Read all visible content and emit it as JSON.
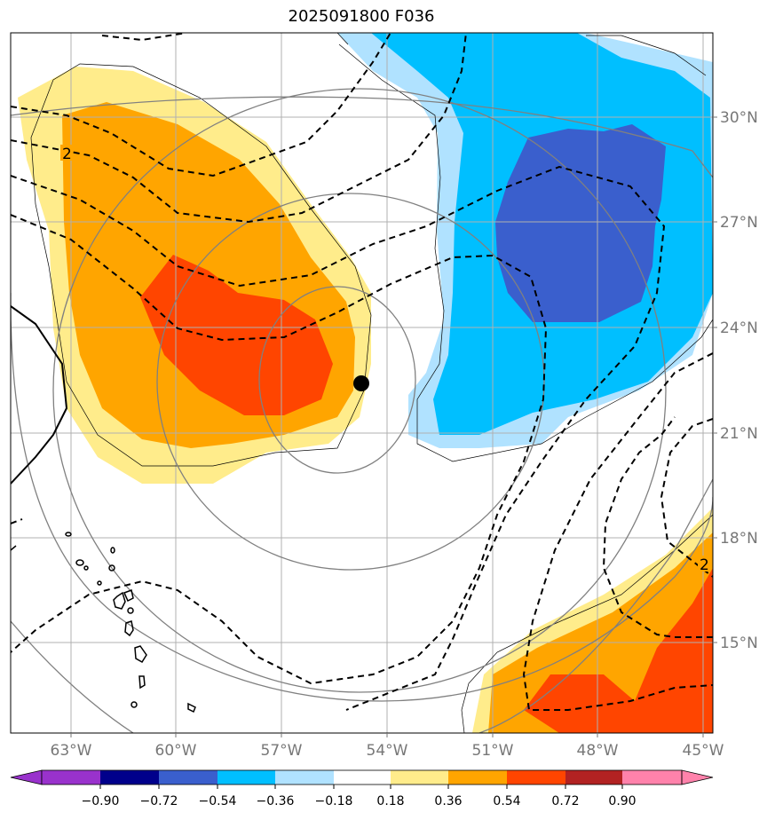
{
  "title": "2025091800 F036",
  "longitude_labels": [
    "63°W",
    "60°W",
    "57°W",
    "54°W",
    "51°W",
    "48°W",
    "45°W"
  ],
  "latitude_labels": [
    "30°N",
    "27°N",
    "24°N",
    "21°N",
    "18°N",
    "15°N"
  ],
  "contour_labels": [
    "2",
    "2"
  ],
  "colorbar": {
    "tick_labels": [
      "−0.90",
      "−0.72",
      "−0.54",
      "−0.36",
      "−0.18",
      "0.18",
      "0.36",
      "0.54",
      "0.72",
      "0.90"
    ],
    "colors": [
      "#9932CC",
      "#00008B",
      "#3A5FCD",
      "#00BFFF",
      "#B0E2FF",
      "#FFFFFF",
      "#FFEC8B",
      "#FFA500",
      "#FF4500",
      "#B22222",
      "#FF82AB"
    ]
  },
  "colors": {
    "positive_light": "#FFEC8B",
    "positive_mid": "#FFA500",
    "positive_strong": "#FF4500",
    "negative_light": "#B0E2FF",
    "negative_mid": "#00BFFF",
    "negative_strong": "#3A5FCD",
    "gridline": "#B0B0B0",
    "rings": "#808080"
  },
  "storm_center_marker": "black-dot"
}
